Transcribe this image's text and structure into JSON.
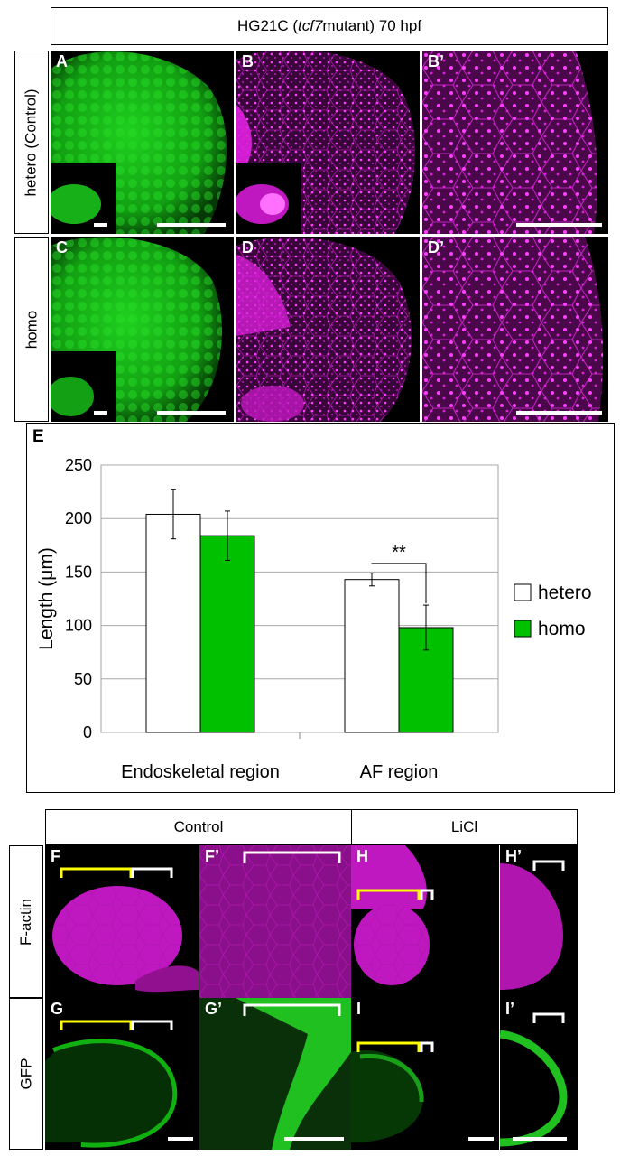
{
  "figure_top": {
    "header": {
      "prefix": "HG21C (",
      "gene": "tcf7",
      "suffix": " mutant) 70 hpf"
    },
    "rows": [
      {
        "label": "hetero (Control)",
        "panels": [
          "A",
          "B",
          "B’"
        ]
      },
      {
        "label": "homo",
        "panels": [
          "C",
          "D",
          "D’"
        ]
      }
    ]
  },
  "chart_panel_label": "E",
  "chart_data": {
    "type": "bar",
    "categories": [
      "Endoskeletal region",
      "AF region"
    ],
    "series": [
      {
        "name": "hetero",
        "values": [
          204,
          143
        ],
        "errors": [
          23,
          6
        ],
        "color": "#ffffff"
      },
      {
        "name": "homo",
        "values": [
          184,
          98
        ],
        "errors": [
          23,
          21
        ],
        "color": "#00c000"
      }
    ],
    "ylabel": "Length (μm)",
    "ylim": [
      0,
      250
    ],
    "yticks": [
      0,
      50,
      100,
      150,
      200,
      250
    ],
    "grid": true,
    "legend": "right",
    "annotation": "**"
  },
  "figure_bottom": {
    "col_headers": [
      "Control",
      "LiCl"
    ],
    "rows": [
      {
        "label": "F-actin",
        "panels": [
          "F",
          "F’",
          "H",
          "H’"
        ]
      },
      {
        "label": "GFP",
        "panels": [
          "G",
          "G’",
          "I",
          "I’"
        ]
      }
    ]
  },
  "colors": {
    "gfp": "#00c000",
    "phalloidin": "#e020e0",
    "bracket_yellow": "#ffff00",
    "bracket_white": "#ffffff"
  }
}
